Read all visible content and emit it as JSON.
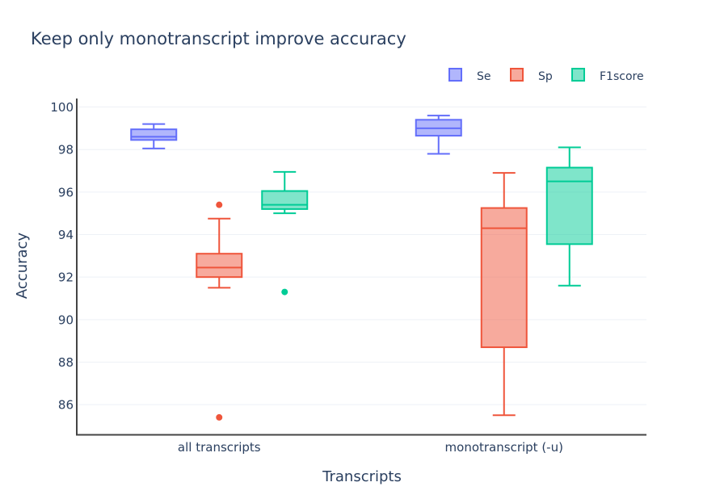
{
  "chart_data": {
    "type": "box",
    "title": "Keep only monotranscript improve accuracy",
    "xlabel": "Transcripts",
    "ylabel": "Accuracy",
    "categories": [
      "all transcripts",
      "monotranscript (-u)"
    ],
    "ylim": [
      84.6,
      100.4
    ],
    "yticks": [
      86,
      88,
      90,
      92,
      94,
      96,
      98,
      100
    ],
    "grid": true,
    "legend_position": "top-right",
    "series": [
      {
        "name": "Se",
        "color": "#636efa",
        "boxes": [
          {
            "category": "all transcripts",
            "min": 98.05,
            "q1": 98.45,
            "median": 98.6,
            "q3": 98.95,
            "max": 99.2,
            "outliers": []
          },
          {
            "category": "monotranscript (-u)",
            "min": 97.8,
            "q1": 98.65,
            "median": 99.0,
            "q3": 99.4,
            "max": 99.6,
            "outliers": []
          }
        ]
      },
      {
        "name": "Sp",
        "color": "#ef553b",
        "boxes": [
          {
            "category": "all transcripts",
            "min": 91.5,
            "q1": 92.0,
            "median": 92.45,
            "q3": 93.1,
            "max": 94.75,
            "outliers": [
              95.4,
              85.4
            ]
          },
          {
            "category": "monotranscript (-u)",
            "min": 85.5,
            "q1": 88.7,
            "median": 94.3,
            "q3": 95.25,
            "max": 96.9,
            "outliers": []
          }
        ]
      },
      {
        "name": "F1score",
        "color": "#00cc96",
        "boxes": [
          {
            "category": "all transcripts",
            "min": 95.0,
            "q1": 95.2,
            "median": 95.4,
            "q3": 96.05,
            "max": 96.95,
            "outliers": [
              91.3
            ]
          },
          {
            "category": "monotranscript (-u)",
            "min": 91.6,
            "q1": 93.55,
            "median": 96.5,
            "q3": 97.15,
            "max": 98.1,
            "outliers": []
          }
        ]
      }
    ]
  }
}
